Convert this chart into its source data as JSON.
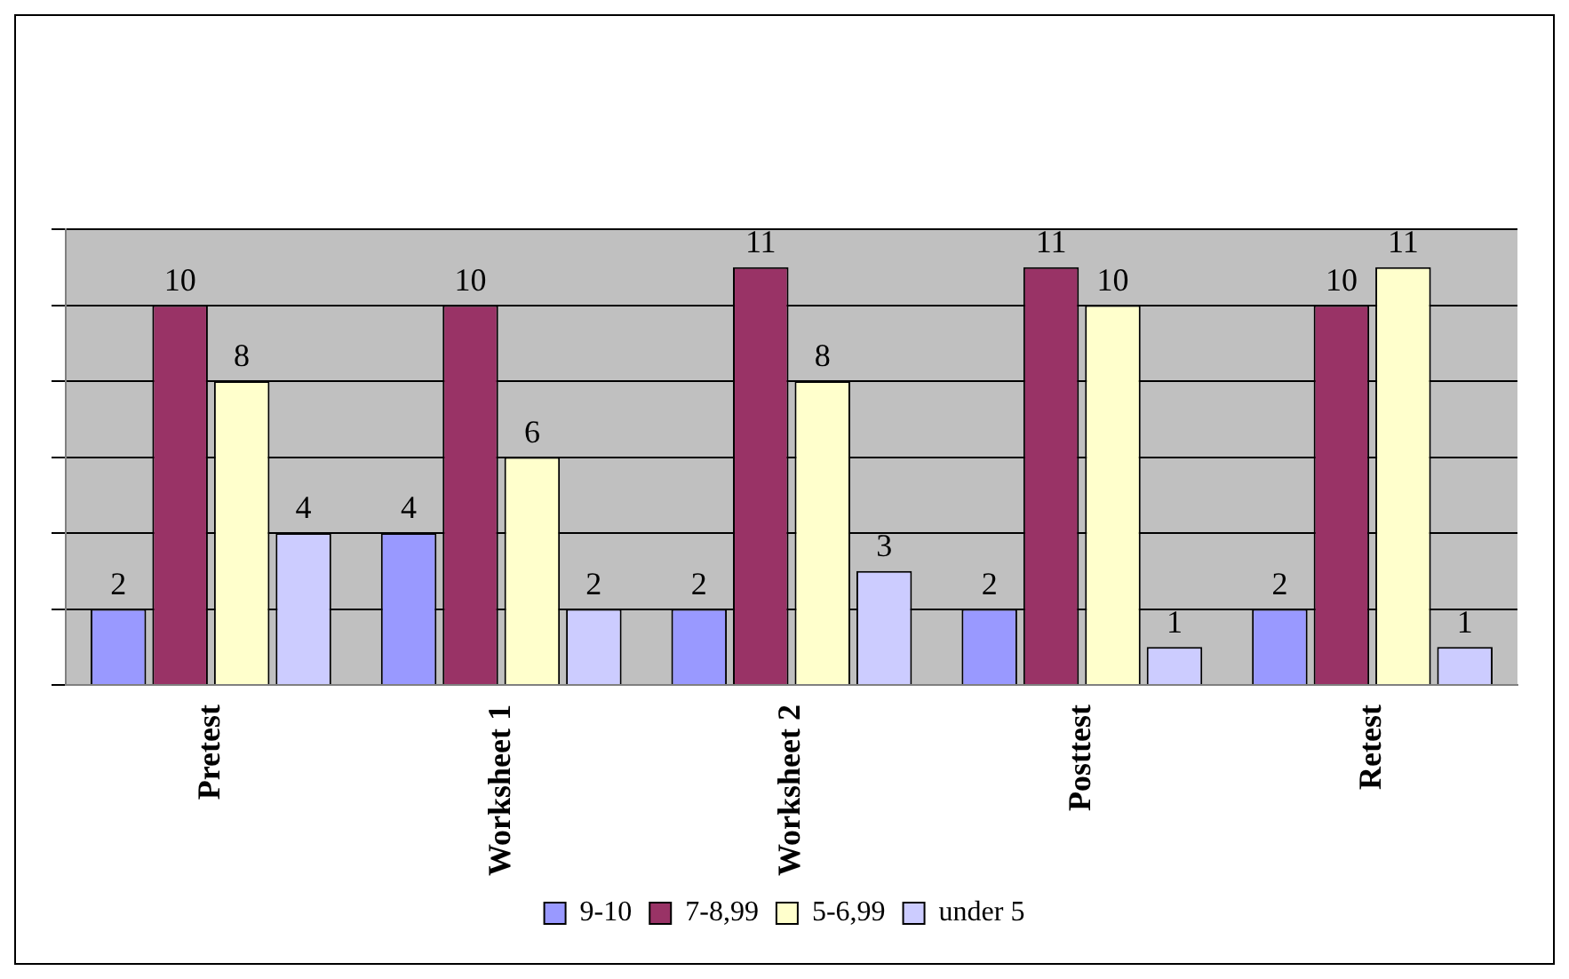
{
  "chart_data": {
    "type": "bar",
    "categories": [
      "Pretest",
      "Worksheet 1",
      "Worksheet 2",
      "Posttest",
      "Retest"
    ],
    "series": [
      {
        "name": "9-10",
        "color": "#9999ff",
        "values": [
          2,
          4,
          2,
          2,
          2
        ]
      },
      {
        "name": "7-8,99",
        "color": "#993366",
        "values": [
          10,
          10,
          11,
          11,
          10
        ]
      },
      {
        "name": "5-6,99",
        "color": "#ffffcc",
        "values": [
          8,
          6,
          8,
          10,
          11
        ]
      },
      {
        "name": "under 5",
        "color": "#ccccff",
        "values": [
          4,
          2,
          3,
          1,
          1
        ]
      }
    ],
    "tick_labels": "x",
    "grid": "y",
    "legend": "bottom",
    "data_labels": true
  }
}
